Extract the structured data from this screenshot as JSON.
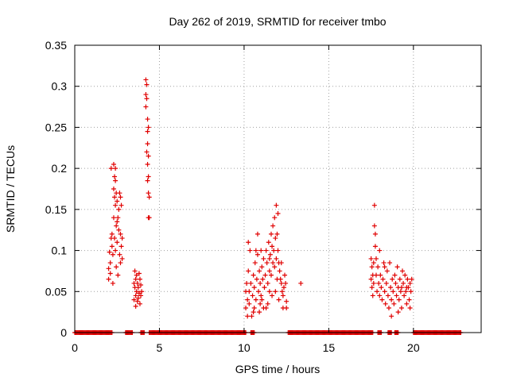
{
  "chart_data": {
    "type": "scatter",
    "title": "Day 262 of 2019, SRMTID for receiver tmbo",
    "xlabel": "GPS time / hours",
    "ylabel": "SRMTID / TECUs",
    "xlim": [
      0,
      24
    ],
    "ylim": [
      0,
      0.35
    ],
    "xticks": [
      0,
      5,
      10,
      15,
      20
    ],
    "yticks": [
      0,
      0.05,
      0.1,
      0.15,
      0.2,
      0.25,
      0.3,
      0.35
    ],
    "xtick_labels": [
      "0",
      "5",
      "10",
      "15",
      "20"
    ],
    "ytick_labels": [
      "0",
      "0.05",
      "0.1",
      "0.15",
      "0.2",
      "0.25",
      "0.3",
      "0.35"
    ],
    "grid": true,
    "marker": "+",
    "color": "#e00000",
    "series": [
      {
        "name": "SRMTID",
        "points": [
          [
            2.0,
            0.078
          ],
          [
            2.0,
            0.065
          ],
          [
            2.05,
            0.098
          ],
          [
            2.1,
            0.085
          ],
          [
            2.1,
            0.072
          ],
          [
            2.15,
            0.115
          ],
          [
            2.2,
            0.12
          ],
          [
            2.2,
            0.105
          ],
          [
            2.25,
            0.095
          ],
          [
            2.25,
            0.06
          ],
          [
            2.3,
            0.205
          ],
          [
            2.3,
            0.175
          ],
          [
            2.3,
            0.14
          ],
          [
            2.35,
            0.19
          ],
          [
            2.35,
            0.165
          ],
          [
            2.35,
            0.115
          ],
          [
            2.4,
            0.2
          ],
          [
            2.4,
            0.185
          ],
          [
            2.4,
            0.155
          ],
          [
            2.4,
            0.1
          ],
          [
            2.45,
            0.17
          ],
          [
            2.45,
            0.13
          ],
          [
            2.5,
            0.16
          ],
          [
            2.5,
            0.135
          ],
          [
            2.5,
            0.11
          ],
          [
            2.55,
            0.14
          ],
          [
            2.6,
            0.15
          ],
          [
            2.6,
            0.125
          ],
          [
            2.65,
            0.17
          ],
          [
            2.65,
            0.095
          ],
          [
            2.7,
            0.165
          ],
          [
            2.7,
            0.12
          ],
          [
            2.75,
            0.155
          ],
          [
            2.75,
            0.105
          ],
          [
            2.8,
            0.115
          ],
          [
            2.8,
            0.09
          ],
          [
            2.15,
            0.2
          ],
          [
            2.45,
            0.08
          ],
          [
            2.55,
            0.07
          ],
          [
            2.7,
            0.085
          ],
          [
            3.5,
            0.06
          ],
          [
            3.5,
            0.04
          ],
          [
            3.55,
            0.075
          ],
          [
            3.55,
            0.055
          ],
          [
            3.6,
            0.065
          ],
          [
            3.6,
            0.045
          ],
          [
            3.6,
            0.032
          ],
          [
            3.65,
            0.07
          ],
          [
            3.65,
            0.05
          ],
          [
            3.7,
            0.06
          ],
          [
            3.7,
            0.038
          ],
          [
            3.75,
            0.055
          ],
          [
            3.75,
            0.042
          ],
          [
            3.8,
            0.072
          ],
          [
            3.8,
            0.048
          ],
          [
            3.85,
            0.065
          ],
          [
            3.85,
            0.035
          ],
          [
            3.9,
            0.058
          ],
          [
            3.9,
            0.045
          ],
          [
            3.95,
            0.05
          ],
          [
            4.2,
            0.308
          ],
          [
            4.2,
            0.29
          ],
          [
            4.2,
            0.275
          ],
          [
            4.25,
            0.302
          ],
          [
            4.25,
            0.285
          ],
          [
            4.3,
            0.26
          ],
          [
            4.3,
            0.245
          ],
          [
            4.3,
            0.23
          ],
          [
            4.35,
            0.25
          ],
          [
            4.35,
            0.215
          ],
          [
            4.3,
            0.205
          ],
          [
            4.35,
            0.19
          ],
          [
            4.35,
            0.17
          ],
          [
            4.4,
            0.165
          ],
          [
            4.35,
            0.14
          ],
          [
            4.4,
            0.14
          ],
          [
            4.25,
            0.22
          ],
          [
            4.3,
            0.185
          ],
          [
            10.1,
            0.05
          ],
          [
            10.1,
            0.03
          ],
          [
            10.15,
            0.06
          ],
          [
            10.2,
            0.04
          ],
          [
            10.2,
            0.02
          ],
          [
            10.25,
            0.075
          ],
          [
            10.3,
            0.05
          ],
          [
            10.3,
            0.035
          ],
          [
            10.35,
            0.1
          ],
          [
            10.4,
            0.06
          ],
          [
            10.5,
            0.045
          ],
          [
            10.55,
            0.07
          ],
          [
            10.6,
            0.055
          ],
          [
            10.65,
            0.085
          ],
          [
            10.7,
            0.04
          ],
          [
            10.75,
            0.065
          ],
          [
            10.8,
            0.095
          ],
          [
            10.85,
            0.05
          ],
          [
            10.9,
            0.075
          ],
          [
            10.95,
            0.06
          ],
          [
            11.0,
            0.1
          ],
          [
            11.0,
            0.045
          ],
          [
            11.05,
            0.08
          ],
          [
            11.1,
            0.065
          ],
          [
            11.15,
            0.09
          ],
          [
            11.2,
            0.055
          ],
          [
            11.25,
            0.07
          ],
          [
            11.3,
            0.1
          ],
          [
            11.35,
            0.085
          ],
          [
            11.4,
            0.06
          ],
          [
            11.45,
            0.11
          ],
          [
            11.5,
            0.075
          ],
          [
            11.5,
            0.09
          ],
          [
            11.55,
            0.095
          ],
          [
            11.6,
            0.12
          ],
          [
            11.6,
            0.07
          ],
          [
            11.65,
            0.105
          ],
          [
            11.7,
            0.085
          ],
          [
            11.7,
            0.13
          ],
          [
            11.75,
            0.1
          ],
          [
            11.8,
            0.14
          ],
          [
            11.8,
            0.08
          ],
          [
            11.85,
            0.115
          ],
          [
            11.9,
            0.09
          ],
          [
            11.9,
            0.155
          ],
          [
            11.95,
            0.12
          ],
          [
            12.0,
            0.145
          ],
          [
            12.0,
            0.1
          ],
          [
            12.05,
            0.085
          ],
          [
            12.1,
            0.075
          ],
          [
            12.15,
            0.065
          ],
          [
            12.2,
            0.06
          ],
          [
            12.25,
            0.05
          ],
          [
            12.3,
            0.045
          ],
          [
            12.35,
            0.055
          ],
          [
            12.4,
            0.07
          ],
          [
            12.5,
            0.038
          ],
          [
            12.5,
            0.03
          ],
          [
            10.25,
            0.11
          ],
          [
            10.45,
            0.02
          ],
          [
            10.6,
            0.03
          ],
          [
            10.7,
            0.1
          ],
          [
            10.8,
            0.12
          ],
          [
            10.9,
            0.025
          ],
          [
            11.05,
            0.04
          ],
          [
            11.3,
            0.03
          ],
          [
            11.5,
            0.05
          ],
          [
            11.65,
            0.045
          ],
          [
            11.85,
            0.05
          ],
          [
            12.05,
            0.04
          ],
          [
            12.2,
            0.085
          ],
          [
            12.3,
            0.03
          ],
          [
            12.45,
            0.06
          ],
          [
            11.95,
            0.065
          ],
          [
            11.4,
            0.035
          ],
          [
            11.15,
            0.03
          ],
          [
            10.55,
            0.025
          ],
          [
            10.95,
            0.035
          ],
          [
            13.35,
            0.06
          ],
          [
            17.5,
            0.09
          ],
          [
            17.5,
            0.065
          ],
          [
            17.55,
            0.08
          ],
          [
            17.55,
            0.055
          ],
          [
            17.6,
            0.07
          ],
          [
            17.65,
            0.085
          ],
          [
            17.65,
            0.06
          ],
          [
            17.7,
            0.155
          ],
          [
            17.7,
            0.13
          ],
          [
            17.75,
            0.12
          ],
          [
            17.75,
            0.105
          ],
          [
            17.8,
            0.09
          ],
          [
            17.8,
            0.07
          ],
          [
            17.85,
            0.05
          ],
          [
            17.9,
            0.08
          ],
          [
            17.95,
            0.06
          ],
          [
            18.0,
            0.045
          ],
          [
            18.05,
            0.07
          ],
          [
            18.1,
            0.055
          ],
          [
            18.15,
            0.04
          ],
          [
            18.2,
            0.065
          ],
          [
            18.25,
            0.085
          ],
          [
            18.3,
            0.05
          ],
          [
            18.35,
            0.035
          ],
          [
            18.4,
            0.06
          ],
          [
            18.45,
            0.075
          ],
          [
            18.5,
            0.045
          ],
          [
            18.55,
            0.03
          ],
          [
            18.6,
            0.085
          ],
          [
            18.65,
            0.055
          ],
          [
            18.7,
            0.04
          ],
          [
            18.75,
            0.065
          ],
          [
            18.8,
            0.05
          ],
          [
            18.85,
            0.035
          ],
          [
            18.9,
            0.07
          ],
          [
            18.95,
            0.06
          ],
          [
            19.0,
            0.045
          ],
          [
            19.05,
            0.08
          ],
          [
            19.1,
            0.055
          ],
          [
            19.15,
            0.04
          ],
          [
            19.2,
            0.065
          ],
          [
            19.25,
            0.05
          ],
          [
            19.3,
            0.03
          ],
          [
            19.35,
            0.075
          ],
          [
            19.4,
            0.06
          ],
          [
            19.45,
            0.045
          ],
          [
            19.5,
            0.07
          ],
          [
            19.55,
            0.05
          ],
          [
            19.6,
            0.035
          ],
          [
            19.65,
            0.065
          ],
          [
            19.7,
            0.055
          ],
          [
            19.75,
            0.04
          ],
          [
            19.8,
            0.06
          ],
          [
            19.85,
            0.05
          ],
          [
            19.9,
            0.065
          ],
          [
            17.6,
            0.045
          ],
          [
            18.0,
            0.1
          ],
          [
            18.3,
            0.08
          ],
          [
            18.7,
            0.02
          ],
          [
            19.1,
            0.025
          ],
          [
            19.3,
            0.055
          ],
          [
            19.6,
            0.055
          ],
          [
            19.8,
            0.03
          ]
        ]
      }
    ]
  }
}
